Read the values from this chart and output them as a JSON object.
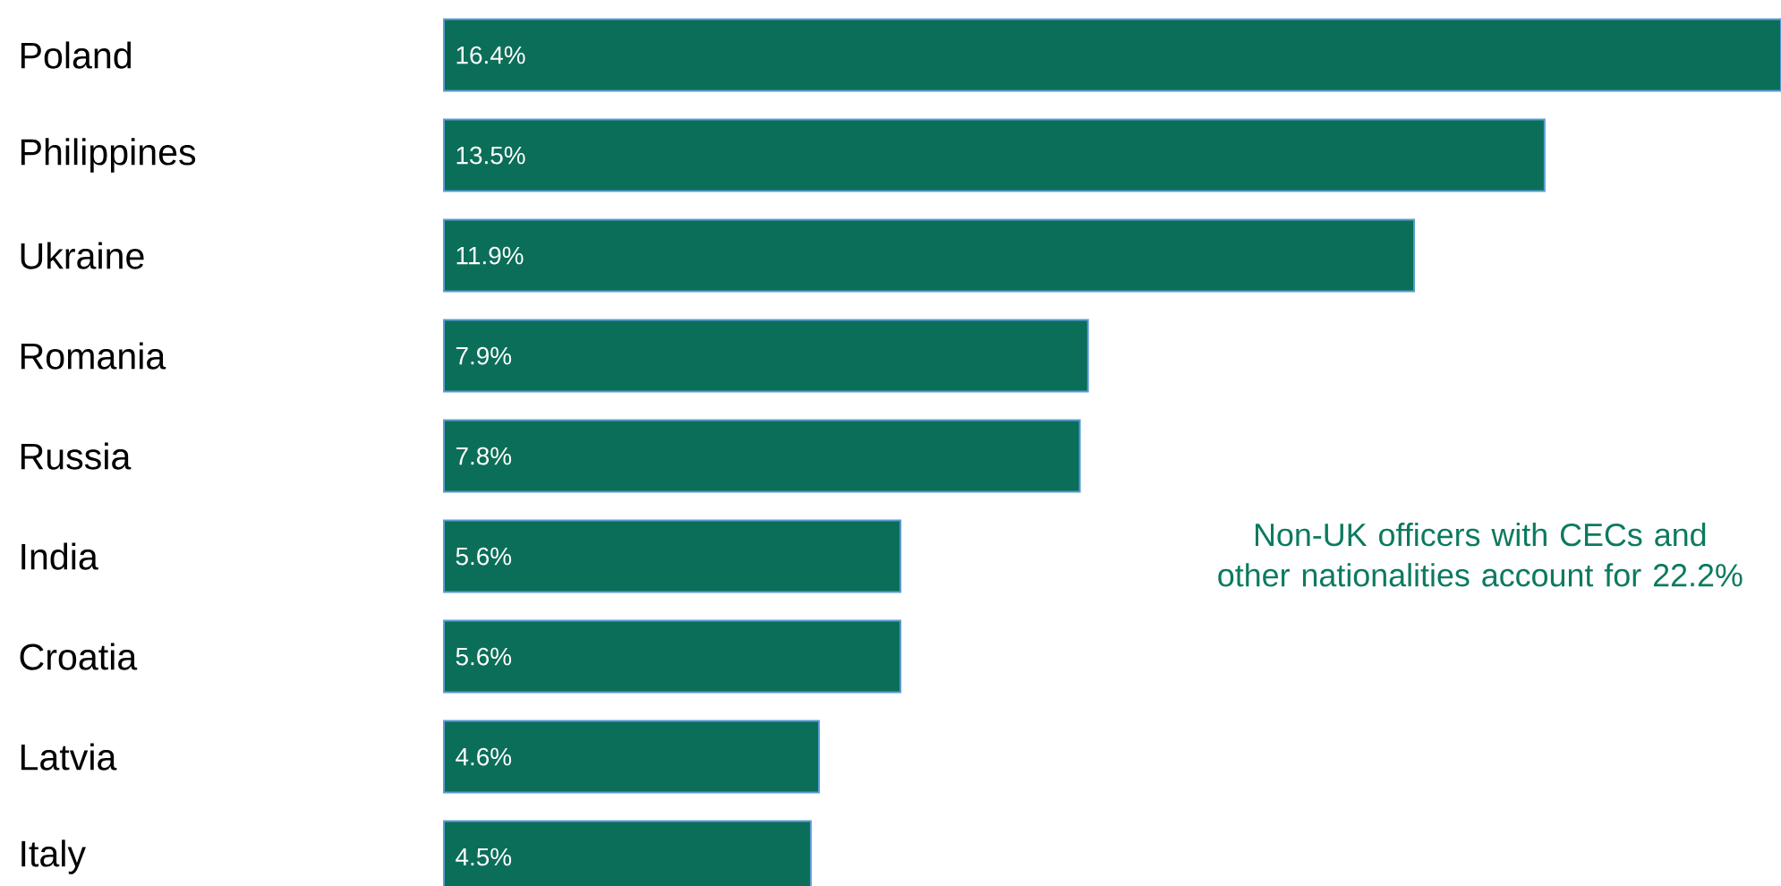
{
  "chart_data": {
    "type": "bar",
    "orientation": "horizontal",
    "categories": [
      "Poland",
      "Philippines",
      "Ukraine",
      "Romania",
      "Russia",
      "India",
      "Croatia",
      "Latvia",
      "Italy"
    ],
    "values": [
      16.4,
      13.5,
      11.9,
      7.9,
      7.8,
      5.6,
      5.6,
      4.6,
      4.5
    ],
    "value_labels": [
      "16.4%",
      "13.5%",
      "11.9%",
      "7.9%",
      "7.8%",
      "5.6%",
      "5.6%",
      "4.6%",
      "4.5%"
    ],
    "color": "#0b6e58",
    "annotations": [
      "Non-UK officers with CECs and other nationalities account for 22.2%"
    ]
  }
}
